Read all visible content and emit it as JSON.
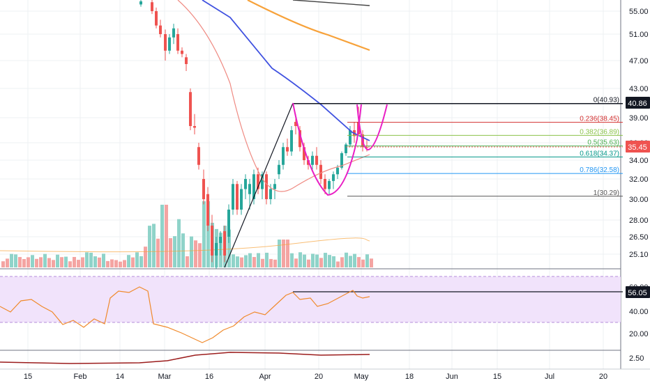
{
  "colors": {
    "up": "#26a69a",
    "down": "#ef5350",
    "vol_up": "#8fd3c9",
    "vol_down": "#f4a4a2",
    "ma_blue": "#3f51e0",
    "ma_orange": "#f7a23a",
    "ma_black": "#444444",
    "ma_red": "#ef8a82",
    "pattern": "#e91ec4",
    "rsi_fill": "#f1e3fb",
    "rsi_line": "#f08a2c",
    "grid": "#eef0f3",
    "price_tag": "#ef5350",
    "level_tag": "#131722"
  },
  "price_axis": {
    "min": 24.0,
    "max": 57.5,
    "ticks": [
      "55.00",
      "51.00",
      "47.00",
      "43.00",
      "39.00",
      "36.00",
      "34.00",
      "32.00",
      "30.00",
      "28.00",
      "26.50",
      "25.10"
    ]
  },
  "rsi_axis": {
    "ticks": [
      "60.00",
      "40.00",
      "20.00"
    ]
  },
  "bottom_axis": {
    "ticks": [
      "2.50"
    ]
  },
  "x_axis": {
    "labels": [
      "15",
      "Feb",
      "14",
      "Mar",
      "16",
      "Apr",
      "20",
      "May",
      "18",
      "Jun",
      "15",
      "Jul",
      "20"
    ]
  },
  "tags": {
    "current_price": "35.45",
    "high_level": "40.86",
    "rsi_value": "56.05"
  },
  "fib_levels": [
    {
      "ratio": "0",
      "value": "(40.93)",
      "price": 40.93,
      "color": "#131722"
    },
    {
      "ratio": "0.236",
      "value": "(38.45)",
      "price": 38.45,
      "color": "#d32f2f"
    },
    {
      "ratio": "0.382",
      "value": "(36.89)",
      "price": 36.89,
      "color": "#8bc34a"
    },
    {
      "ratio": "0.5",
      "value": "(35.63)",
      "price": 35.63,
      "color": "#4caf50"
    },
    {
      "ratio": "0.618",
      "value": "(34.37)",
      "price": 34.37,
      "color": "#009688"
    },
    {
      "ratio": "0.786",
      "value": "(32.58)",
      "price": 32.58,
      "color": "#2196f3"
    },
    {
      "ratio": "1",
      "value": "(30.29)",
      "price": 30.29,
      "color": "#555555"
    }
  ],
  "chart_data": {
    "type": "candlestick",
    "series": [
      {
        "name": "",
        "ohlc": [
          [
            200,
            56.5,
            57.5,
            56.0,
            57.2
          ],
          [
            216,
            57.0,
            57.8,
            54.5,
            55.0
          ],
          [
            222,
            55.0,
            55.8,
            52.0,
            52.5
          ],
          [
            228,
            52.5,
            53.5,
            50.5,
            51.0
          ],
          [
            235,
            51.0,
            51.8,
            47.0,
            48.5
          ],
          [
            241,
            48.5,
            51.0,
            48.0,
            50.5
          ],
          [
            247,
            50.5,
            52.8,
            49.5,
            52.0
          ],
          [
            253,
            51.0,
            52.0,
            48.0,
            48.5
          ],
          [
            259,
            48.5,
            49.0,
            47.5,
            48.0
          ],
          [
            265,
            47.5,
            48.0,
            45.5,
            46.5
          ],
          [
            271,
            42.5,
            43.0,
            37.5,
            38.0
          ],
          [
            277,
            38.0,
            39.5,
            37.0,
            37.8
          ],
          [
            283,
            35.5,
            36.0,
            33.0,
            33.5
          ],
          [
            290,
            32.0,
            33.0,
            29.5,
            30.0
          ],
          [
            296,
            30.5,
            31.2,
            27.0,
            27.5
          ],
          [
            302,
            27.5,
            28.5,
            24.5,
            25.0
          ],
          [
            308,
            25.0,
            26.5,
            24.0,
            26.0
          ],
          [
            314,
            26.0,
            27.0,
            25.0,
            26.5
          ],
          [
            320,
            27.0,
            27.5,
            24.5,
            25.0
          ],
          [
            326,
            26.5,
            29.5,
            26.0,
            29.0
          ],
          [
            332,
            29.0,
            32.0,
            28.5,
            31.5
          ],
          [
            338,
            31.5,
            31.8,
            28.5,
            29.0
          ],
          [
            344,
            29.0,
            31.5,
            28.5,
            31.0
          ],
          [
            350,
            31.0,
            32.5,
            30.0,
            32.0
          ],
          [
            356,
            30.5,
            32.0,
            29.0,
            31.5
          ],
          [
            362,
            30.0,
            33.0,
            29.5,
            32.5
          ],
          [
            368,
            32.5,
            33.2,
            30.5,
            31.0
          ],
          [
            374,
            31.0,
            32.8,
            30.0,
            32.5
          ],
          [
            380,
            32.5,
            32.8,
            29.5,
            30.0
          ],
          [
            386,
            30.0,
            31.5,
            29.5,
            31.0
          ],
          [
            392,
            31.0,
            32.0,
            30.0,
            31.5
          ],
          [
            398,
            32.5,
            34.0,
            32.0,
            33.5
          ],
          [
            404,
            33.5,
            36.0,
            33.0,
            35.5
          ],
          [
            410,
            35.5,
            36.5,
            34.5,
            35.0
          ],
          [
            416,
            35.0,
            38.0,
            34.5,
            37.5
          ],
          [
            422,
            38.5,
            39.5,
            37.0,
            38.0
          ],
          [
            428,
            37.5,
            38.0,
            35.0,
            35.5
          ],
          [
            434,
            35.5,
            36.0,
            33.5,
            34.0
          ],
          [
            440,
            34.0,
            34.5,
            33.0,
            33.5
          ],
          [
            446,
            33.5,
            35.0,
            33.0,
            34.5
          ],
          [
            452,
            34.5,
            35.5,
            33.0,
            33.5
          ],
          [
            458,
            33.5,
            34.0,
            31.5,
            32.0
          ],
          [
            464,
            32.0,
            32.5,
            30.5,
            31.0
          ],
          [
            470,
            31.0,
            32.0,
            30.5,
            31.8
          ],
          [
            476,
            31.8,
            32.8,
            31.0,
            32.5
          ],
          [
            482,
            32.5,
            33.5,
            32.0,
            33.2
          ],
          [
            488,
            33.2,
            35.0,
            33.0,
            34.8
          ],
          [
            494,
            34.8,
            36.0,
            34.5,
            35.8
          ],
          [
            500,
            35.8,
            38.0,
            35.5,
            37.5
          ],
          [
            506,
            37.5,
            38.5,
            36.0,
            36.8
          ],
          [
            512,
            38.5,
            40.5,
            37.0,
            37.0
          ],
          [
            518,
            37.0,
            37.5,
            35.0,
            35.5
          ],
          [
            524,
            35.5,
            36.5,
            35.0,
            35.45
          ]
        ]
      }
    ],
    "xlabel": "",
    "ylabel": "",
    "ylim": [
      24.0,
      57.5
    ]
  }
}
